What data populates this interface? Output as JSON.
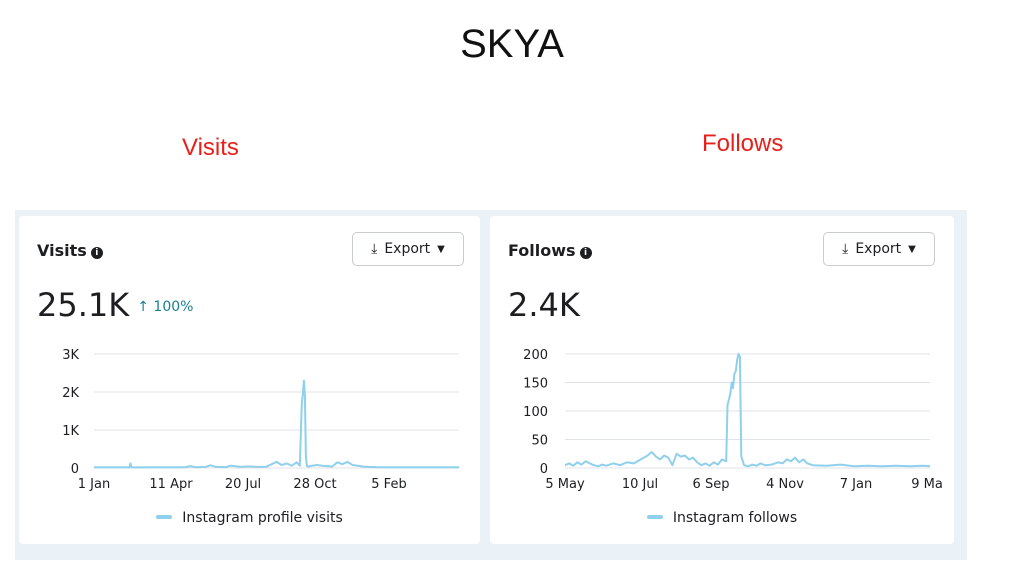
{
  "page_title": "SKYA",
  "captions": {
    "left": "Visits",
    "right": "Follows"
  },
  "colors": {
    "line": "#8fd0ec",
    "caption": "#e8201a",
    "delta": "#1a7f8e"
  },
  "cards": [
    {
      "title": "Visits",
      "info_icon": "info-icon",
      "export_label": "Export",
      "big_value": "25.1K",
      "delta": "↑ 100%",
      "legend": "Instagram profile visits"
    },
    {
      "title": "Follows",
      "info_icon": "info-icon",
      "export_label": "Export",
      "big_value": "2.4K",
      "legend": "Instagram follows"
    }
  ],
  "chart_data": [
    {
      "type": "line",
      "title": "Visits",
      "yticks": [
        "0",
        "1K",
        "2K",
        "3K"
      ],
      "ylim": [
        0,
        3000
      ],
      "xticks": [
        "1 Jan",
        "11 Apr",
        "20 Jul",
        "28 Oct",
        "5 Feb"
      ],
      "grid": true,
      "legend_position": "bottom",
      "series": [
        {
          "name": "Instagram profile visits",
          "x": [
            0,
            20,
            35,
            36,
            37,
            40,
            60,
            80,
            90,
            95,
            100,
            110,
            115,
            120,
            130,
            135,
            145,
            150,
            155,
            160,
            170,
            180,
            185,
            190,
            195,
            200,
            203,
            205,
            206,
            207,
            208,
            209,
            210,
            212,
            215,
            220,
            225,
            230,
            235,
            240,
            245,
            250,
            255,
            260,
            265,
            270,
            280,
            300,
            320,
            340,
            360
          ],
          "y": [
            20,
            20,
            20,
            120,
            20,
            15,
            20,
            20,
            25,
            50,
            20,
            30,
            70,
            30,
            25,
            60,
            30,
            40,
            40,
            30,
            35,
            160,
            80,
            120,
            60,
            150,
            60,
            1700,
            1950,
            2300,
            1900,
            300,
            50,
            40,
            60,
            80,
            60,
            50,
            40,
            150,
            100,
            160,
            80,
            60,
            40,
            30,
            20,
            20,
            20,
            20,
            20
          ]
        }
      ]
    },
    {
      "type": "line",
      "title": "Follows",
      "yticks": [
        "0",
        "50",
        "100",
        "150",
        "200"
      ],
      "ylim": [
        0,
        200
      ],
      "xticks": [
        "5 May",
        "10 Jul",
        "6 Sep",
        "4 Nov",
        "7 Jan",
        "9 Ma"
      ],
      "grid": true,
      "legend_position": "bottom",
      "series": [
        {
          "name": "Instagram follows",
          "x": [
            0,
            3,
            6,
            9,
            12,
            15,
            18,
            21,
            24,
            27,
            30,
            35,
            40,
            45,
            50,
            55,
            60,
            63,
            66,
            69,
            72,
            75,
            78,
            81,
            84,
            87,
            90,
            93,
            96,
            99,
            102,
            105,
            108,
            111,
            114,
            117,
            118,
            120,
            121,
            122,
            123,
            124,
            125,
            126,
            127,
            128,
            130,
            133,
            136,
            139,
            142,
            145,
            150,
            155,
            158,
            161,
            164,
            167,
            170,
            173,
            176,
            180,
            190,
            200,
            210,
            220,
            230,
            240,
            250,
            260,
            265
          ],
          "y": [
            5,
            8,
            4,
            10,
            6,
            12,
            8,
            5,
            3,
            6,
            4,
            8,
            5,
            10,
            8,
            15,
            22,
            28,
            20,
            15,
            22,
            18,
            5,
            25,
            20,
            22,
            15,
            18,
            10,
            5,
            8,
            4,
            10,
            6,
            15,
            12,
            110,
            130,
            150,
            140,
            165,
            170,
            190,
            200,
            195,
            20,
            5,
            3,
            6,
            4,
            8,
            5,
            6,
            10,
            8,
            15,
            12,
            18,
            10,
            15,
            8,
            5,
            4,
            6,
            3,
            4,
            3,
            4,
            3,
            4,
            3
          ]
        }
      ]
    }
  ]
}
